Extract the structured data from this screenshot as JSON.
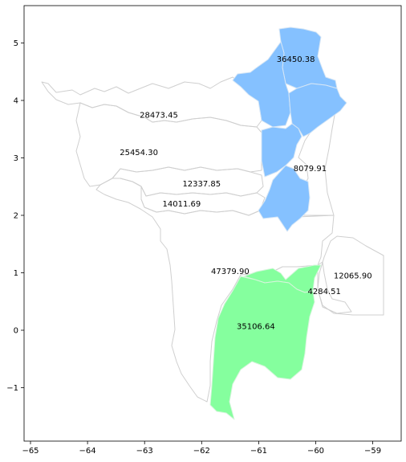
{
  "chart_data": {
    "type": "choropleth-map",
    "title": "",
    "xlabel": "",
    "ylabel": "",
    "xlim": [
      -65.1,
      -58.6
    ],
    "ylim": [
      -1.9,
      5.6
    ],
    "x_ticks": [
      -65,
      -64,
      -63,
      -62,
      -61,
      -60,
      -59
    ],
    "y_ticks": [
      -1,
      0,
      1,
      2,
      3,
      4,
      5
    ],
    "x_tick_labels": [
      "−65",
      "−64",
      "−63",
      "−62",
      "−61",
      "−60",
      "−59"
    ],
    "y_tick_labels": [
      "−1",
      "0",
      "1",
      "2",
      "3",
      "4",
      "5"
    ],
    "colors": {
      "highlight_blue": "#85c1ff",
      "highlight_green": "#85ff9e",
      "outline": "#cfcfcf"
    },
    "regions": [
      {
        "value": "36450.38",
        "lon": -60.35,
        "lat": 4.72,
        "fill": "blue"
      },
      {
        "value": "28473.45",
        "lon": -62.75,
        "lat": 3.75,
        "fill": "none"
      },
      {
        "value": "25454.30",
        "lon": -63.1,
        "lat": 3.1,
        "fill": "none"
      },
      {
        "value": "12337.85",
        "lon": -62.0,
        "lat": 2.55,
        "fill": "none"
      },
      {
        "value": "14011.69",
        "lon": -62.35,
        "lat": 2.2,
        "fill": "none"
      },
      {
        "value": "8079.91",
        "lon": -60.1,
        "lat": 2.82,
        "fill": "blue"
      },
      {
        "value": "47379.90",
        "lon": -61.5,
        "lat": 1.03,
        "fill": "green"
      },
      {
        "value": "35106.64",
        "lon": -61.05,
        "lat": 0.07,
        "fill": "green"
      },
      {
        "value": "4284.51",
        "lon": -59.85,
        "lat": 0.68,
        "fill": "none"
      },
      {
        "value": "12065.90",
        "lon": -59.35,
        "lat": 0.95,
        "fill": "none"
      }
    ]
  }
}
